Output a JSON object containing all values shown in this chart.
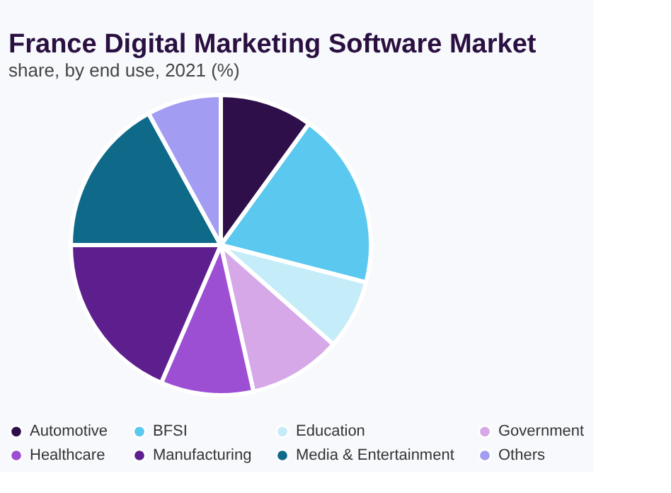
{
  "chart_data": {
    "type": "pie",
    "title": "France Digital Marketing Software Market",
    "subtitle": "share, by end use, 2021 (%)",
    "categories": [
      "Automotive",
      "BFSI",
      "Education",
      "Government",
      "Healthcare",
      "Manufacturing",
      "Media & Entertainment",
      "Others"
    ],
    "values": [
      10,
      19,
      7.5,
      10,
      10,
      18.5,
      17,
      8
    ],
    "colors": [
      "#2e0f4a",
      "#5bc8f0",
      "#c5ecf9",
      "#d6a8e8",
      "#9d4fd4",
      "#5e1f8e",
      "#0f6a8a",
      "#a29cf2"
    ],
    "legend": "bottom"
  }
}
